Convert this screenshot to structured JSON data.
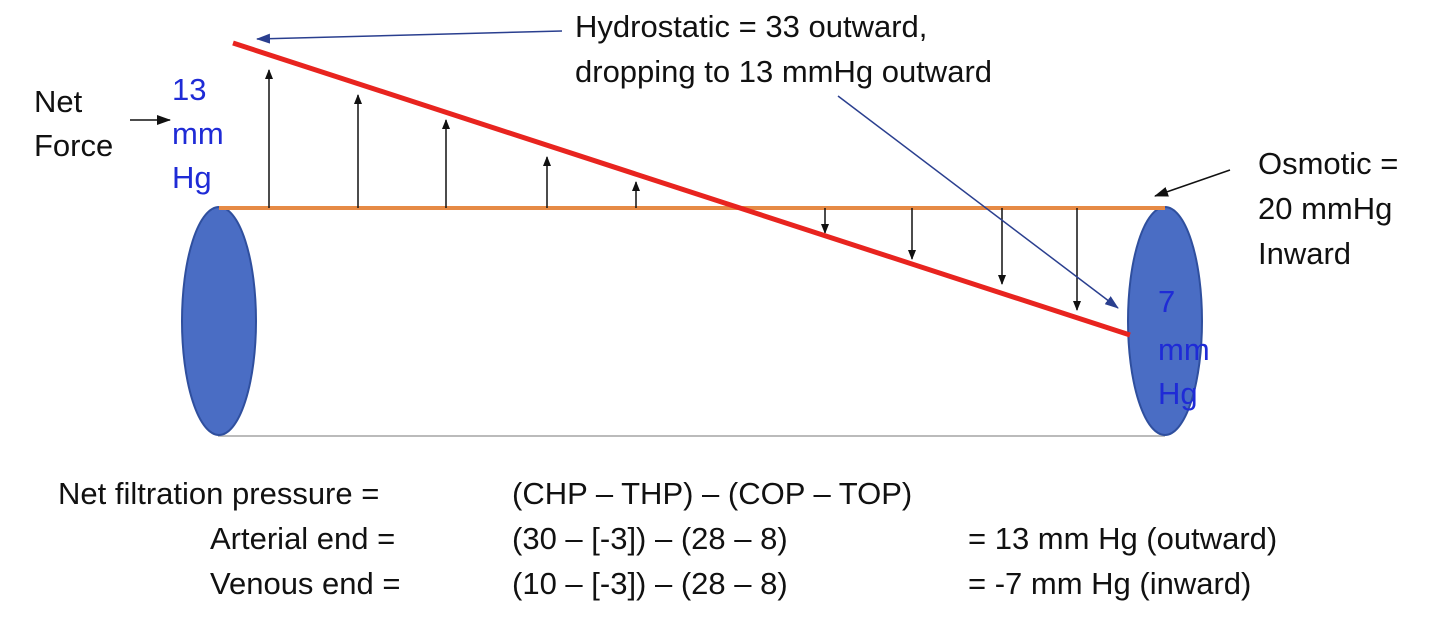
{
  "annotations": {
    "hydrostatic_line1": "Hydrostatic = 33 outward,",
    "hydrostatic_line2": "dropping to 13 mmHg outward",
    "net_force_line1": "Net",
    "net_force_line2": "Force",
    "arterial_value_1": "13",
    "arterial_value_2": "mm",
    "arterial_value_3": "Hg",
    "osmotic_line1": "Osmotic =",
    "osmotic_line2": "20 mmHg",
    "osmotic_line3": "Inward",
    "venous_value_1": "7",
    "venous_value_2": "mm",
    "venous_value_3": "Hg"
  },
  "equations": {
    "header_label": "Net filtration pressure =",
    "header_formula": "(CHP – THP) – (COP – TOP)",
    "arterial_label": "Arterial end  =",
    "arterial_formula": "(30 – [-3]) – (28 – 8)",
    "arterial_result": "= 13 mm Hg (outward)",
    "venous_label": "Venous end  =",
    "venous_formula": "(10 – [-3]) – (28 – 8)",
    "venous_result": "=  -7 mm Hg (inward)"
  },
  "colors": {
    "hydrostatic_line": "#e8241f",
    "osmotic_line": "#e68a45",
    "vessel_end": "#4a6dc4",
    "value_text": "#1f2bd6",
    "pointer_arrow": "#2a3f8f"
  }
}
